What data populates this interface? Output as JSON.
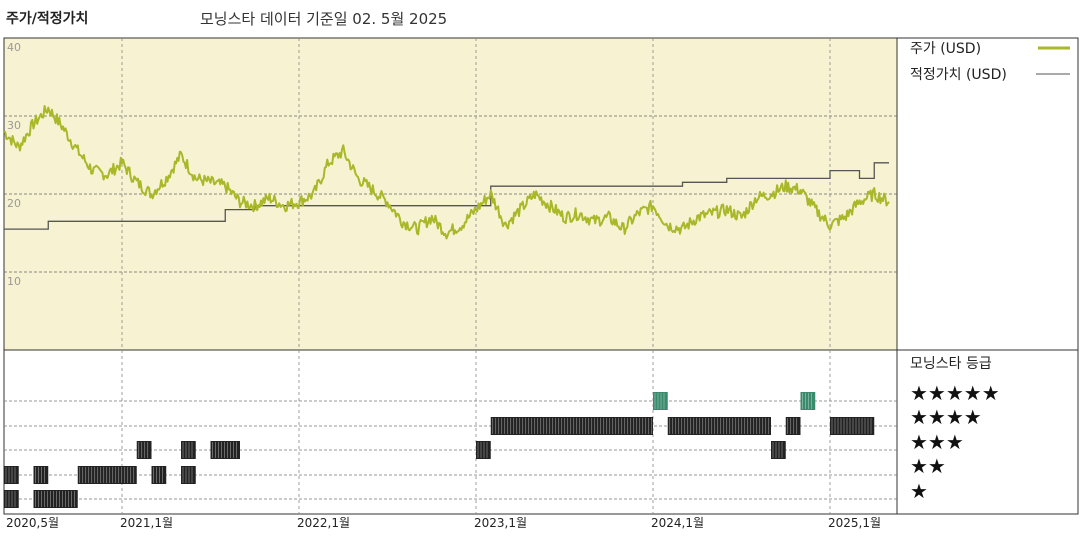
{
  "header": {
    "title": "주가/적정가치",
    "subtitle": "모닝스타 데이터 기준일 02. 5월 2025"
  },
  "legend": {
    "price_label": "주가 (USD)",
    "fair_label": "적정가치 (USD)",
    "rating_title": "모닝스타 등급",
    "stars": [
      "★★★★★",
      "★★★★",
      "★★★",
      "★★",
      "★"
    ]
  },
  "colors": {
    "price": "#a8b829",
    "fair": "#555555",
    "panel_bg": "#f7f3d2",
    "rating_bar": "#222222",
    "rating_5": "#3a8a6e"
  },
  "chart_data": [
    {
      "type": "line",
      "ylim": [
        0,
        40
      ],
      "y_ticks": [
        "40",
        "30",
        "20",
        "10"
      ],
      "x_ticks": [
        "2020,5월",
        "2021,1월",
        "2022,1월",
        "2023,1월",
        "2024,1월",
        "2025,1월"
      ],
      "x_range": [
        "2020-05",
        "2025-05"
      ],
      "grid": true,
      "legend_position": "right",
      "series": [
        {
          "name": "주가 (USD)",
          "points": [
            [
              "2020-05",
              28
            ],
            [
              "2020-06",
              26
            ],
            [
              "2020-07",
              29
            ],
            [
              "2020-08",
              31
            ],
            [
              "2020-09",
              28.5
            ],
            [
              "2020-10",
              25.5
            ],
            [
              "2020-11",
              23
            ],
            [
              "2020-12",
              22.5
            ],
            [
              "2021-01",
              24
            ],
            [
              "2021-02",
              21.5
            ],
            [
              "2021-03",
              20
            ],
            [
              "2021-04",
              22
            ],
            [
              "2021-05",
              25
            ],
            [
              "2021-06",
              22
            ],
            [
              "2021-07",
              21.5
            ],
            [
              "2021-08",
              21
            ],
            [
              "2021-09",
              19
            ],
            [
              "2021-10",
              18.5
            ],
            [
              "2021-11",
              19.5
            ],
            [
              "2021-12",
              18.5
            ],
            [
              "2022-01",
              19
            ],
            [
              "2022-02",
              20
            ],
            [
              "2022-03",
              24
            ],
            [
              "2022-04",
              25.5
            ],
            [
              "2022-05",
              22
            ],
            [
              "2022-06",
              20.5
            ],
            [
              "2022-07",
              19
            ],
            [
              "2022-08",
              16.5
            ],
            [
              "2022-09",
              15.5
            ],
            [
              "2022-10",
              17
            ],
            [
              "2022-11",
              15
            ],
            [
              "2022-12",
              16
            ],
            [
              "2023-01",
              18
            ],
            [
              "2023-02",
              20
            ],
            [
              "2023-03",
              16
            ],
            [
              "2023-04",
              18
            ],
            [
              "2023-05",
              20
            ],
            [
              "2023-06",
              18.5
            ],
            [
              "2023-07",
              17
            ],
            [
              "2023-08",
              17.5
            ],
            [
              "2023-09",
              16.5
            ],
            [
              "2023-10",
              17
            ],
            [
              "2023-11",
              15.5
            ],
            [
              "2023-12",
              17.5
            ],
            [
              "2024-01",
              18.5
            ],
            [
              "2024-02",
              16
            ],
            [
              "2024-03",
              15.5
            ],
            [
              "2024-04",
              17
            ],
            [
              "2024-05",
              17.5
            ],
            [
              "2024-06",
              18
            ],
            [
              "2024-07",
              17
            ],
            [
              "2024-08",
              19.5
            ],
            [
              "2024-09",
              20
            ],
            [
              "2024-10",
              21
            ],
            [
              "2024-11",
              20.5
            ],
            [
              "2024-12",
              18
            ],
            [
              "2025-01",
              16
            ],
            [
              "2025-02",
              17
            ],
            [
              "2025-03",
              19
            ],
            [
              "2025-04",
              20
            ],
            [
              "2025-05",
              19
            ]
          ]
        },
        {
          "name": "적정가치 (USD)",
          "step": true,
          "points": [
            [
              "2020-05",
              15.5
            ],
            [
              "2020-08",
              16.5
            ],
            [
              "2021-04",
              16.5
            ],
            [
              "2021-08",
              18
            ],
            [
              "2021-10",
              18.5
            ],
            [
              "2023-02",
              21
            ],
            [
              "2024-01",
              21
            ],
            [
              "2024-03",
              21.5
            ],
            [
              "2024-06",
              22
            ],
            [
              "2024-10",
              22
            ],
            [
              "2025-01",
              23
            ],
            [
              "2025-03",
              22
            ],
            [
              "2025-04",
              24
            ],
            [
              "2025-05",
              24
            ]
          ]
        }
      ]
    },
    {
      "type": "rating-timeline",
      "levels": [
        5,
        4,
        3,
        2,
        1
      ],
      "segments": [
        {
          "rating": 1,
          "from": "2020-05",
          "to": "2020-06"
        },
        {
          "rating": 1,
          "from": "2020-07",
          "to": "2020-10"
        },
        {
          "rating": 2,
          "from": "2020-05",
          "to": "2020-06"
        },
        {
          "rating": 2,
          "from": "2020-07",
          "to": "2020-08"
        },
        {
          "rating": 2,
          "from": "2020-10",
          "to": "2021-02"
        },
        {
          "rating": 2,
          "from": "2021-03",
          "to": "2021-04"
        },
        {
          "rating": 2,
          "from": "2021-05",
          "to": "2021-06"
        },
        {
          "rating": 3,
          "from": "2021-02",
          "to": "2021-03"
        },
        {
          "rating": 3,
          "from": "2021-05",
          "to": "2021-06"
        },
        {
          "rating": 3,
          "from": "2021-07",
          "to": "2021-09"
        },
        {
          "rating": 3,
          "from": "2023-01",
          "to": "2023-02"
        },
        {
          "rating": 3,
          "from": "2024-09",
          "to": "2024-10"
        },
        {
          "rating": 4,
          "from": "2023-02",
          "to": "2024-01"
        },
        {
          "rating": 4,
          "from": "2024-02",
          "to": "2024-09"
        },
        {
          "rating": 4,
          "from": "2024-10",
          "to": "2024-11"
        },
        {
          "rating": 4,
          "from": "2025-01",
          "to": "2025-04"
        },
        {
          "rating": 5,
          "from": "2024-01",
          "to": "2024-02"
        },
        {
          "rating": 5,
          "from": "2024-11",
          "to": "2024-12"
        }
      ]
    }
  ]
}
